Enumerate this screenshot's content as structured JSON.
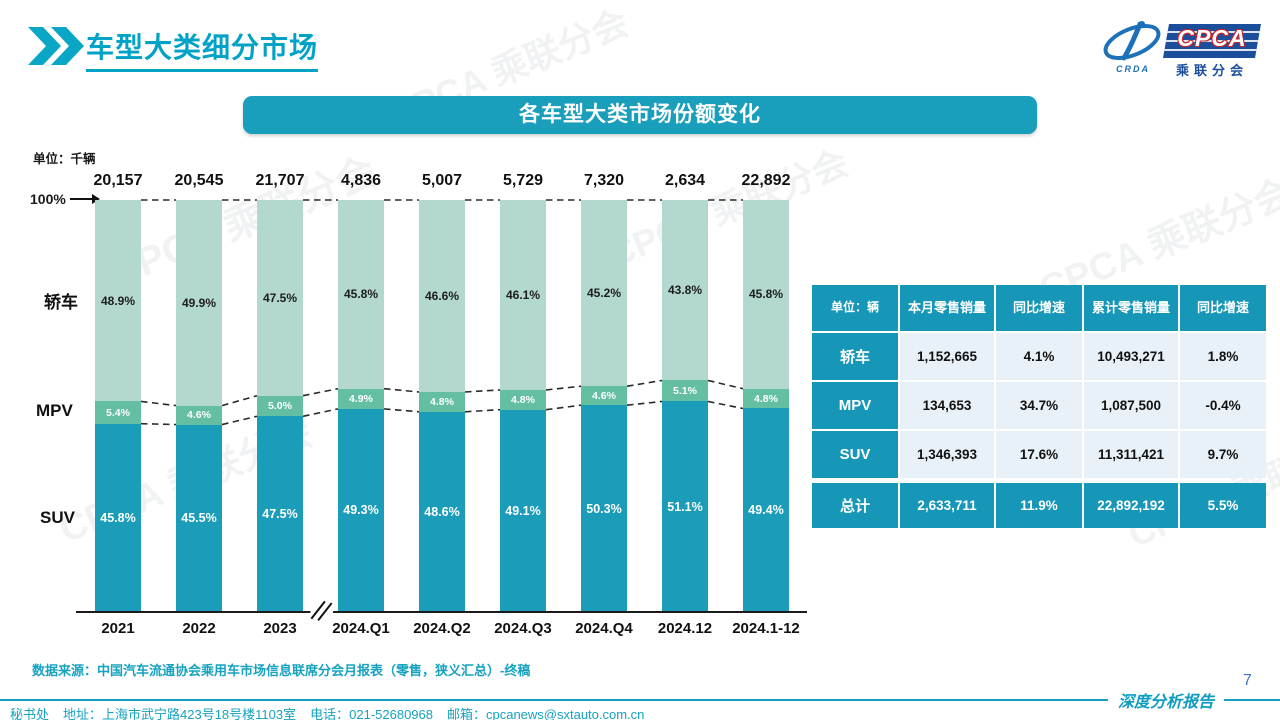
{
  "header": {
    "title": "车型大类细分市场"
  },
  "logo": {
    "cpca": "CPCA",
    "crda": "CRDA",
    "subtitle": "乘联分会"
  },
  "banner": {
    "title": "各车型大类市场份额变化"
  },
  "chart": {
    "unit_label": "单位：千辆",
    "axis_100_label": "100%"
  },
  "chart_data": {
    "type": "bar",
    "subtype": "stacked-100-percent",
    "title": "各车型大类市场份额变化",
    "unit": "千辆",
    "categories": [
      "2021",
      "2022",
      "2023",
      "2024.Q1",
      "2024.Q2",
      "2024.Q3",
      "2024.Q4",
      "2024.12",
      "2024.1-12"
    ],
    "totals": [
      "20,157",
      "20,545",
      "21,707",
      "4,836",
      "5,007",
      "5,729",
      "7,320",
      "2,634",
      "22,892"
    ],
    "series": [
      {
        "name": "轿车",
        "key": "sedan",
        "values": [
          48.9,
          49.9,
          47.5,
          45.8,
          46.6,
          46.1,
          45.2,
          43.8,
          45.8
        ]
      },
      {
        "name": "MPV",
        "key": "mpv",
        "values": [
          5.4,
          4.6,
          5.0,
          4.9,
          4.8,
          4.8,
          4.6,
          5.1,
          4.8
        ]
      },
      {
        "name": "SUV",
        "key": "suv",
        "values": [
          45.8,
          45.5,
          47.5,
          49.3,
          48.6,
          49.1,
          50.3,
          51.1,
          49.4
        ]
      }
    ],
    "ylim": [
      0,
      100
    ],
    "grid": false,
    "legend_position": "left-category-labels",
    "axis_break_between": [
      "2023",
      "2024.Q1"
    ]
  },
  "table": {
    "unit_header": "单位：辆",
    "columns": [
      "本月零售销量",
      "同比增速",
      "累计零售销量",
      "同比增速"
    ],
    "rows": [
      {
        "label": "轿车",
        "values": [
          "1,152,665",
          "4.1%",
          "10,493,271",
          "1.8%"
        ]
      },
      {
        "label": "MPV",
        "values": [
          "134,653",
          "34.7%",
          "1,087,500",
          "-0.4%"
        ]
      },
      {
        "label": "SUV",
        "values": [
          "1,346,393",
          "17.6%",
          "11,311,421",
          "9.7%"
        ]
      }
    ],
    "total_row": {
      "label": "总计",
      "values": [
        "2,633,711",
        "11.9%",
        "22,892,192",
        "5.5%"
      ]
    }
  },
  "source_note": "数据来源：中国汽车流通协会乘用车市场信息联席分会月报表（零售，狭义汇总）-终稿",
  "footer": {
    "secretariat": "秘书处",
    "address": "地址：上海市武宁路423号18号楼1103室",
    "phone": "电话：021-52680968",
    "email": "邮箱：cpcanews@sxtauto.com.cn",
    "report_label": "深度分析报告",
    "page_number": "7"
  },
  "watermark_text": "CPCA 乘联分会",
  "colors": {
    "accent_teal": "#1697B8",
    "title_teal": "#00A2C6",
    "sedan": "#B2D8D0",
    "mpv": "#63BEA2",
    "suv": "#1B9DB9",
    "table_cell_bg": "#E9F1F8",
    "dashed_line": "#2a2a2a",
    "page_number_blue": "#4472C4"
  }
}
